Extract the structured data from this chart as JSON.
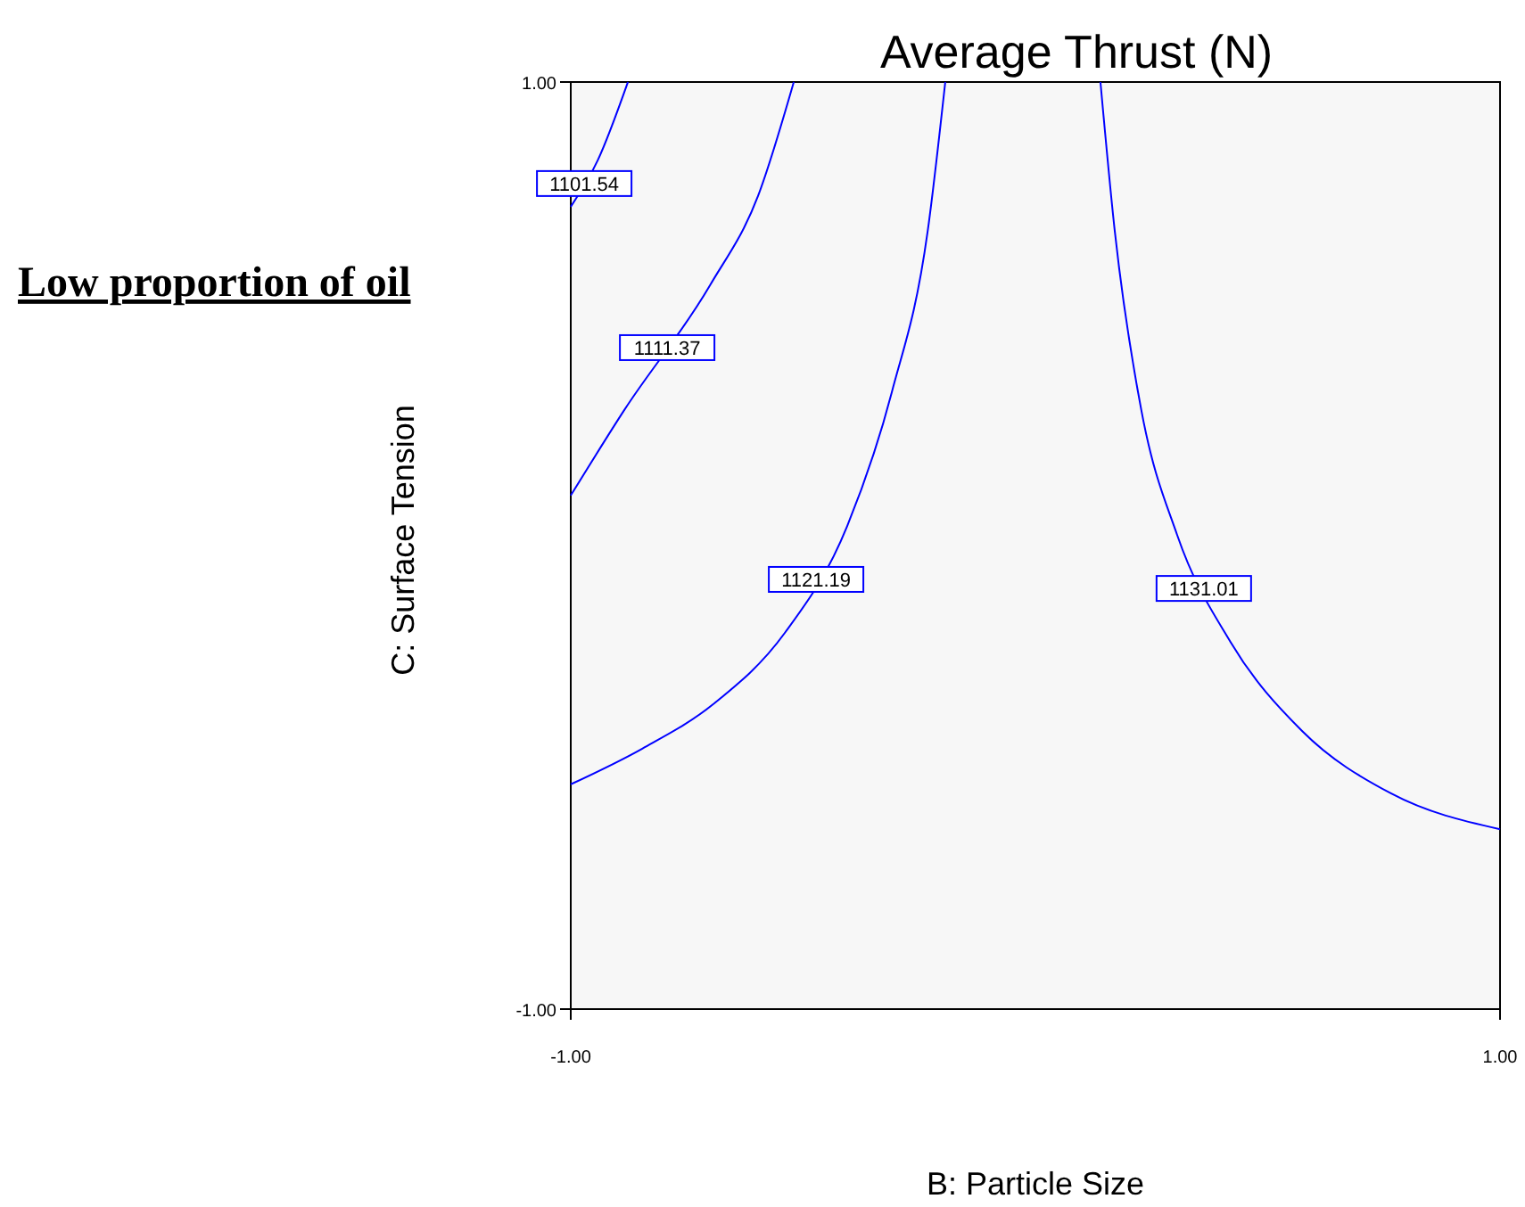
{
  "chart_data": {
    "type": "line",
    "title": "Average Thrust (N)",
    "xlabel": "B: Particle Size",
    "ylabel": "C: Surface Tension",
    "annotations": [
      "Low proportion of oil"
    ],
    "xlim": [
      -1,
      1
    ],
    "ylim": [
      -1,
      1
    ],
    "xticks": [
      {
        "value": -1,
        "label": "-1.00"
      },
      {
        "value": 1,
        "label": "1.00"
      }
    ],
    "yticks": [
      {
        "value": -1,
        "label": "-1.00"
      },
      {
        "value": 1,
        "label": "1.00"
      }
    ],
    "grid": false,
    "marker": "none",
    "line_style": "solid",
    "series": [
      {
        "name": "1101.54",
        "color": "#0000ff",
        "x": [
          -1,
          -0.942,
          -0.877
        ],
        "values": [
          0.731,
          0.831,
          1
        ]
      },
      {
        "name": "1111.37",
        "color": "#0000ff",
        "x": [
          -1,
          -0.885,
          -0.7,
          -0.597,
          -0.52
        ],
        "values": [
          0.108,
          0.292,
          0.562,
          0.754,
          1
        ]
      },
      {
        "name": "1121.19",
        "color": "#0000ff",
        "x": [
          -1,
          -0.846,
          -0.693,
          -0.539,
          -0.405,
          -0.309,
          -0.232,
          -0.194
        ],
        "values": [
          -0.515,
          -0.438,
          -0.342,
          -0.188,
          0.042,
          0.331,
          0.677,
          1
        ]
      },
      {
        "name": "1131.01",
        "color": "#0000ff",
        "x": [
          0.14,
          0.171,
          0.228,
          0.305,
          0.42,
          0.574,
          0.766,
          1
        ],
        "values": [
          1,
          0.677,
          0.292,
          0.023,
          -0.208,
          -0.4,
          -0.535,
          -0.612
        ]
      }
    ]
  }
}
